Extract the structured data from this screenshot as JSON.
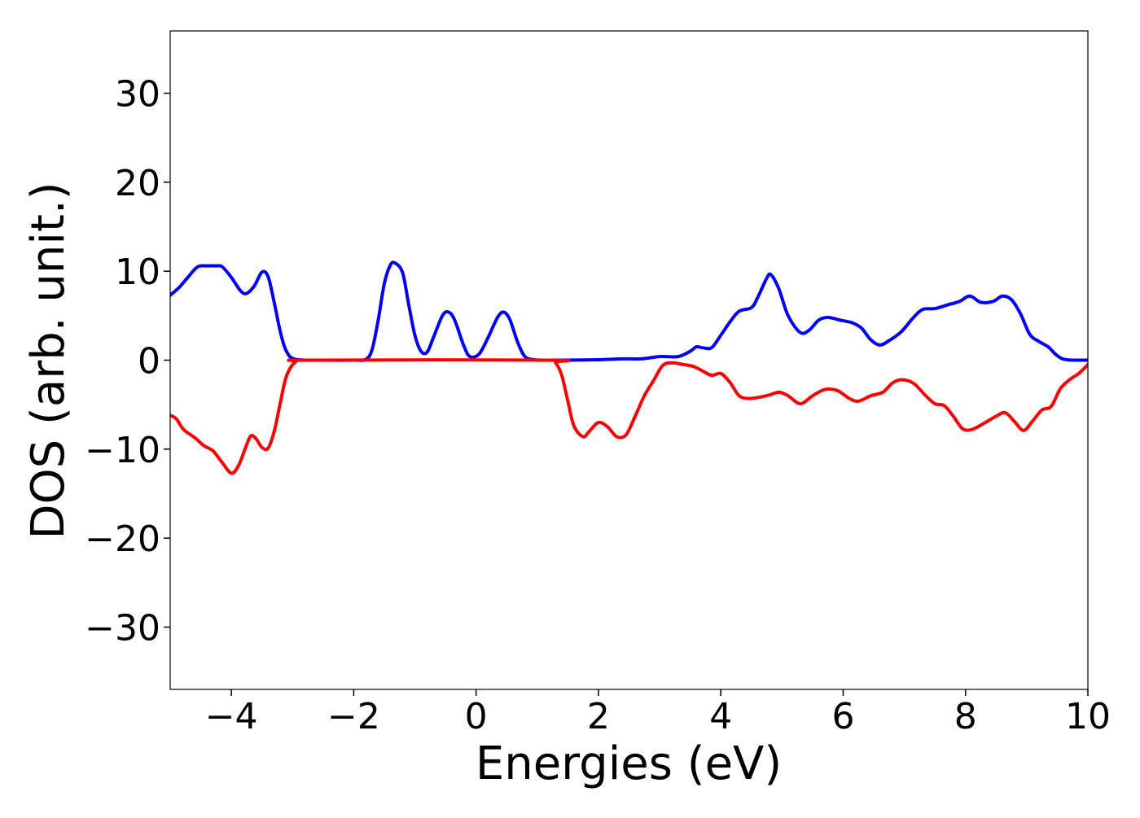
{
  "chart_data": {
    "type": "line",
    "xlabel": "Energies (eV)",
    "ylabel": "DOS (arb. unit.)",
    "xlim": [
      -5,
      10
    ],
    "ylim": [
      -37,
      37
    ],
    "x_ticks": [
      -4,
      -2,
      0,
      2,
      4,
      6,
      8,
      10
    ],
    "x_tick_labels": [
      "−4",
      "−2",
      "0",
      "2",
      "4",
      "6",
      "8",
      "10"
    ],
    "y_ticks": [
      -30,
      -20,
      -10,
      0,
      10,
      20,
      30
    ],
    "y_tick_labels": [
      "−30",
      "−20",
      "−10",
      "0",
      "10",
      "20",
      "30"
    ],
    "grid": false,
    "legend": "none",
    "series": [
      {
        "color": "#0000ff",
        "points": [
          [
            -5.0,
            7.3
          ],
          [
            -4.85,
            8.2
          ],
          [
            -4.7,
            9.4
          ],
          [
            -4.55,
            10.5
          ],
          [
            -4.4,
            10.6
          ],
          [
            -4.25,
            10.6
          ],
          [
            -4.15,
            10.5
          ],
          [
            -4.0,
            9.3
          ],
          [
            -3.85,
            7.8
          ],
          [
            -3.75,
            7.5
          ],
          [
            -3.62,
            8.4
          ],
          [
            -3.5,
            9.9
          ],
          [
            -3.4,
            9.4
          ],
          [
            -3.3,
            6.5
          ],
          [
            -3.2,
            3.2
          ],
          [
            -3.1,
            1.0
          ],
          [
            -2.95,
            0.1
          ],
          [
            -2.5,
            0.0
          ],
          [
            -2.0,
            0.0
          ],
          [
            -1.8,
            0.1
          ],
          [
            -1.7,
            1.2
          ],
          [
            -1.6,
            4.5
          ],
          [
            -1.5,
            8.6
          ],
          [
            -1.4,
            10.7
          ],
          [
            -1.32,
            10.9
          ],
          [
            -1.2,
            9.8
          ],
          [
            -1.1,
            6.2
          ],
          [
            -1.0,
            2.8
          ],
          [
            -0.9,
            1.0
          ],
          [
            -0.8,
            0.9
          ],
          [
            -0.7,
            2.5
          ],
          [
            -0.55,
            5.0
          ],
          [
            -0.45,
            5.4
          ],
          [
            -0.35,
            4.5
          ],
          [
            -0.2,
            1.6
          ],
          [
            -0.1,
            0.4
          ],
          [
            0.05,
            0.7
          ],
          [
            0.2,
            2.6
          ],
          [
            0.35,
            4.8
          ],
          [
            0.45,
            5.4
          ],
          [
            0.55,
            4.6
          ],
          [
            0.68,
            2.0
          ],
          [
            0.8,
            0.4
          ],
          [
            0.95,
            0.05
          ],
          [
            1.2,
            0.0
          ],
          [
            2.0,
            0.05
          ],
          [
            2.4,
            0.15
          ],
          [
            2.7,
            0.15
          ],
          [
            3.0,
            0.4
          ],
          [
            3.3,
            0.4
          ],
          [
            3.5,
            1.0
          ],
          [
            3.6,
            1.5
          ],
          [
            3.7,
            1.4
          ],
          [
            3.85,
            1.4
          ],
          [
            4.0,
            2.8
          ],
          [
            4.15,
            4.3
          ],
          [
            4.3,
            5.5
          ],
          [
            4.5,
            5.9
          ],
          [
            4.6,
            7.0
          ],
          [
            4.75,
            9.2
          ],
          [
            4.82,
            9.6
          ],
          [
            4.95,
            8.0
          ],
          [
            5.1,
            5.0
          ],
          [
            5.3,
            3.1
          ],
          [
            5.45,
            3.4
          ],
          [
            5.6,
            4.5
          ],
          [
            5.75,
            4.8
          ],
          [
            5.95,
            4.5
          ],
          [
            6.15,
            4.2
          ],
          [
            6.3,
            3.6
          ],
          [
            6.45,
            2.3
          ],
          [
            6.6,
            1.7
          ],
          [
            6.75,
            2.2
          ],
          [
            6.95,
            3.2
          ],
          [
            7.15,
            4.8
          ],
          [
            7.3,
            5.7
          ],
          [
            7.5,
            5.8
          ],
          [
            7.7,
            6.2
          ],
          [
            7.9,
            6.6
          ],
          [
            8.07,
            7.2
          ],
          [
            8.25,
            6.5
          ],
          [
            8.45,
            6.6
          ],
          [
            8.6,
            7.2
          ],
          [
            8.75,
            6.8
          ],
          [
            8.9,
            5.2
          ],
          [
            9.05,
            2.9
          ],
          [
            9.2,
            2.1
          ],
          [
            9.35,
            1.5
          ],
          [
            9.5,
            0.5
          ],
          [
            9.65,
            0.05
          ],
          [
            10.0,
            0.0
          ]
        ]
      },
      {
        "color": "#ff0000",
        "points": [
          [
            -5.0,
            -6.2
          ],
          [
            -4.9,
            -6.6
          ],
          [
            -4.78,
            -7.8
          ],
          [
            -4.6,
            -8.7
          ],
          [
            -4.45,
            -9.6
          ],
          [
            -4.3,
            -10.2
          ],
          [
            -4.15,
            -11.5
          ],
          [
            -4.0,
            -12.7
          ],
          [
            -3.88,
            -11.8
          ],
          [
            -3.75,
            -9.5
          ],
          [
            -3.68,
            -8.5
          ],
          [
            -3.6,
            -8.8
          ],
          [
            -3.5,
            -9.8
          ],
          [
            -3.4,
            -9.9
          ],
          [
            -3.3,
            -8.0
          ],
          [
            -3.2,
            -4.8
          ],
          [
            -3.1,
            -1.8
          ],
          [
            -2.95,
            -0.2
          ],
          [
            -2.7,
            0.0
          ],
          [
            1.2,
            0.0
          ],
          [
            1.3,
            -0.3
          ],
          [
            1.4,
            -1.7
          ],
          [
            1.5,
            -4.6
          ],
          [
            1.6,
            -7.4
          ],
          [
            1.75,
            -8.6
          ],
          [
            1.85,
            -8.0
          ],
          [
            2.0,
            -7.0
          ],
          [
            2.15,
            -7.5
          ],
          [
            2.3,
            -8.6
          ],
          [
            2.45,
            -8.4
          ],
          [
            2.6,
            -6.3
          ],
          [
            2.75,
            -4.0
          ],
          [
            2.9,
            -2.3
          ],
          [
            3.05,
            -0.6
          ],
          [
            3.2,
            -0.3
          ],
          [
            3.4,
            -0.5
          ],
          [
            3.55,
            -0.7
          ],
          [
            3.7,
            -1.2
          ],
          [
            3.85,
            -1.7
          ],
          [
            4.0,
            -1.5
          ],
          [
            4.15,
            -2.5
          ],
          [
            4.3,
            -4.0
          ],
          [
            4.45,
            -4.3
          ],
          [
            4.6,
            -4.2
          ],
          [
            4.8,
            -3.9
          ],
          [
            4.95,
            -3.6
          ],
          [
            5.1,
            -4.0
          ],
          [
            5.3,
            -4.9
          ],
          [
            5.5,
            -4.0
          ],
          [
            5.7,
            -3.3
          ],
          [
            5.9,
            -3.4
          ],
          [
            6.1,
            -4.3
          ],
          [
            6.25,
            -4.6
          ],
          [
            6.45,
            -4.0
          ],
          [
            6.65,
            -3.6
          ],
          [
            6.8,
            -2.6
          ],
          [
            6.95,
            -2.2
          ],
          [
            7.15,
            -2.6
          ],
          [
            7.35,
            -4.0
          ],
          [
            7.5,
            -4.9
          ],
          [
            7.65,
            -5.1
          ],
          [
            7.8,
            -6.3
          ],
          [
            7.95,
            -7.7
          ],
          [
            8.1,
            -7.8
          ],
          [
            8.3,
            -7.1
          ],
          [
            8.5,
            -6.3
          ],
          [
            8.65,
            -5.9
          ],
          [
            8.8,
            -6.9
          ],
          [
            8.95,
            -7.9
          ],
          [
            9.1,
            -6.8
          ],
          [
            9.25,
            -5.6
          ],
          [
            9.4,
            -5.2
          ],
          [
            9.55,
            -3.2
          ],
          [
            9.7,
            -2.2
          ],
          [
            9.85,
            -1.5
          ],
          [
            10.0,
            -0.5
          ]
        ]
      }
    ]
  }
}
